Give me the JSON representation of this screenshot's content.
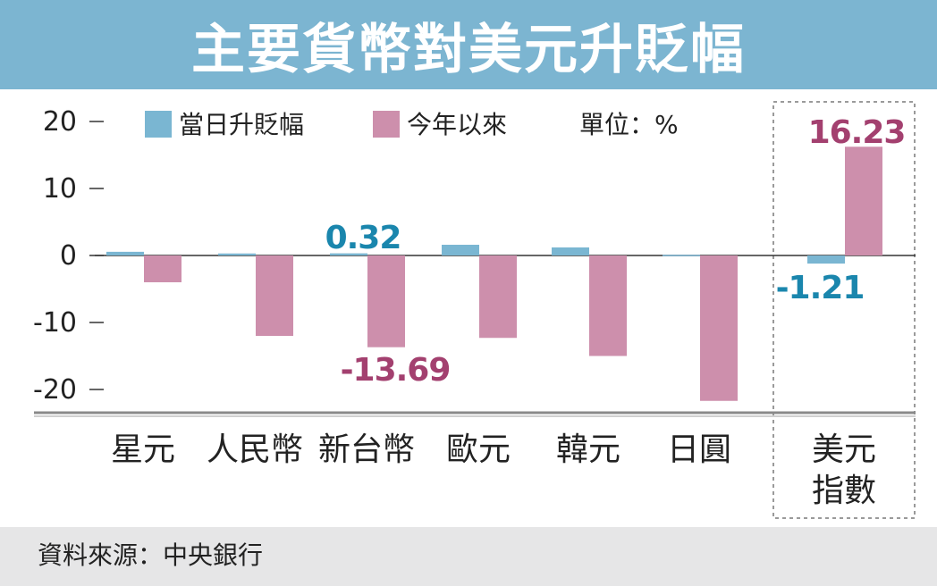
{
  "title": "主要貨幣對美元升貶幅",
  "source": "資料來源：中央銀行",
  "colors": {
    "header_bg": "#7cb5d1",
    "daily": "#7ab6d2",
    "ytd": "#cd8fac",
    "daily_label": "#1a86ad",
    "ytd_label": "#a3406f",
    "footer_bg": "#e6e6e7"
  },
  "chart_data": {
    "type": "bar",
    "unit_label": "單位：%",
    "categories": [
      "星元",
      "人民幣",
      "新台幣",
      "歐元",
      "韓元",
      "日圓",
      "美元指數"
    ],
    "category_lines": [
      [
        "星元"
      ],
      [
        "人民幣"
      ],
      [
        "新台幣"
      ],
      [
        "歐元"
      ],
      [
        "韓元"
      ],
      [
        "日圓"
      ],
      [
        "美元",
        "指數"
      ]
    ],
    "series": [
      {
        "name": "當日升貶幅",
        "values": [
          0.55,
          0.3,
          0.32,
          1.6,
          1.2,
          0.1,
          -1.21
        ]
      },
      {
        "name": "今年以來",
        "values": [
          -4.0,
          -12.0,
          -13.69,
          -12.3,
          -15.0,
          -21.7,
          16.23
        ]
      }
    ],
    "data_labels": [
      {
        "series": 0,
        "index": 2,
        "text": "0.32"
      },
      {
        "series": 1,
        "index": 2,
        "text": "-13.69"
      },
      {
        "series": 0,
        "index": 6,
        "text": "-1.21"
      },
      {
        "series": 1,
        "index": 6,
        "text": "16.23"
      }
    ],
    "yticks": [
      20,
      10,
      0,
      -10,
      -20
    ],
    "ytick_labels": [
      "20",
      "10",
      "0",
      "-10",
      "-20"
    ],
    "ylim": [
      -24,
      20
    ],
    "highlight_category": "美元指數",
    "grid": false,
    "legend_position": "top"
  }
}
